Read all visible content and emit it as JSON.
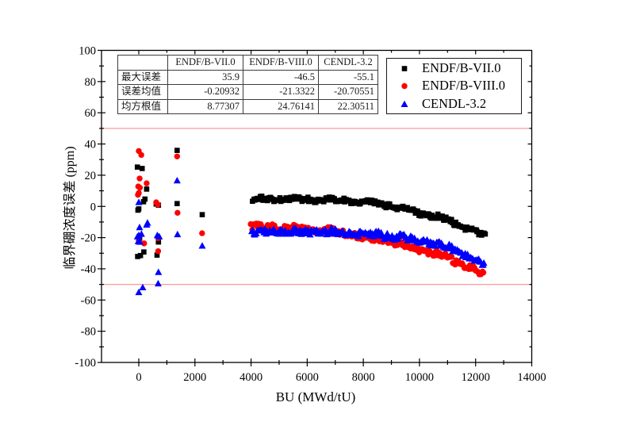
{
  "figure": {
    "background": "#ffffff",
    "axis_color": "#000000"
  },
  "chart_data": {
    "type": "scatter",
    "title": "",
    "xlabel": "BU (MWd/tU)",
    "ylabel": "临界硼浓度误差 (ppm)",
    "xlim": [
      -1330,
      14000
    ],
    "ylim": [
      -100,
      100
    ],
    "xticks": [
      0,
      2000,
      4000,
      6000,
      8000,
      10000,
      12000,
      14000
    ],
    "x_minor_step": 1000,
    "yticks": [
      -100,
      -80,
      -60,
      -40,
      -20,
      0,
      20,
      40,
      60,
      80,
      100
    ],
    "y_minor_step": 10,
    "grid": false,
    "reference_lines": {
      "values": [
        50,
        -50
      ],
      "color": "#ff9898",
      "width": 1.2
    },
    "legend_position": "top-right",
    "jitter_seed": 1337,
    "series": [
      {
        "name": "ENDF/B-VII.0",
        "marker": "square",
        "color": "#000000",
        "cluster_points": [
          [
            -50,
            25.2
          ],
          [
            120,
            24.3
          ],
          [
            280,
            11.1
          ],
          [
            220,
            4.7
          ],
          [
            170,
            3.0
          ],
          [
            0,
            -1.6
          ],
          [
            -30,
            -2.4
          ],
          [
            30,
            -20.5
          ],
          [
            180,
            -29.2
          ],
          [
            -40,
            -32.1
          ],
          [
            60,
            -31.5
          ],
          [
            620,
            1.5
          ],
          [
            700,
            0.8
          ],
          [
            700,
            -22.8
          ],
          [
            650,
            -31.2
          ],
          [
            1366,
            35.9
          ],
          [
            1366,
            1.8
          ],
          [
            2260,
            -5.3
          ]
        ],
        "band": {
          "x_start": 4060,
          "x_end": 12360,
          "x_step": 40,
          "x_jitter": 14,
          "y_jitter": 1.4,
          "anchors": [
            [
              4060,
              4.2
            ],
            [
              4500,
              4.7
            ],
            [
              5000,
              5.0
            ],
            [
              5600,
              4.7
            ],
            [
              6200,
              4.5
            ],
            [
              6800,
              4.4
            ],
            [
              7400,
              4.0
            ],
            [
              7800,
              3.4
            ],
            [
              8300,
              2.4
            ],
            [
              8800,
              1.0
            ],
            [
              9300,
              -1.0
            ],
            [
              9800,
              -3.4
            ],
            [
              10300,
              -5.4
            ],
            [
              10900,
              -8.0
            ],
            [
              11400,
              -11.5
            ],
            [
              11900,
              -15.0
            ],
            [
              12200,
              -18.2
            ],
            [
              12360,
              -20.0
            ]
          ]
        },
        "stats": {
          "max_error": "35.9",
          "mean_error": "-0.20932",
          "rms": "8.77307"
        }
      },
      {
        "name": "ENDF/B-VIII.0",
        "marker": "circle",
        "color": "#ff0000",
        "cluster_points": [
          [
            0,
            35.5
          ],
          [
            90,
            33.0
          ],
          [
            30,
            17.9
          ],
          [
            280,
            14.8
          ],
          [
            -20,
            12.8
          ],
          [
            40,
            12.0
          ],
          [
            0,
            8.6
          ],
          [
            -30,
            7.4
          ],
          [
            0,
            -22.0
          ],
          [
            190,
            -23.7
          ],
          [
            620,
            2.6
          ],
          [
            680,
            1.2
          ],
          [
            690,
            -20.3
          ],
          [
            690,
            -28.7
          ],
          [
            1366,
            32.0
          ],
          [
            1380,
            -4.1
          ],
          [
            2255,
            -17.2
          ]
        ],
        "band": {
          "x_start": 4000,
          "x_end": 12310,
          "x_step": 40,
          "x_jitter": 14,
          "y_jitter": 1.8,
          "anchors": [
            [
              4000,
              -13.2
            ],
            [
              4400,
              -12.6
            ],
            [
              5000,
              -13.6
            ],
            [
              5600,
              -14.2
            ],
            [
              6200,
              -14.8
            ],
            [
              6800,
              -15.6
            ],
            [
              7400,
              -17.4
            ],
            [
              7900,
              -19.2
            ],
            [
              8400,
              -20.8
            ],
            [
              9000,
              -23.0
            ],
            [
              9500,
              -25.0
            ],
            [
              10000,
              -27.4
            ],
            [
              10500,
              -30.0
            ],
            [
              11000,
              -33.0
            ],
            [
              11400,
              -36.0
            ],
            [
              11900,
              -40.0
            ],
            [
              12150,
              -42.8
            ],
            [
              12310,
              -45.0
            ]
          ]
        },
        "stats": {
          "max_error": "-46.5",
          "mean_error": "-21.3322",
          "rms": "24.76141"
        }
      },
      {
        "name": "CENDL-3.2",
        "marker": "triangle",
        "color": "#0000ff",
        "cluster_points": [
          [
            0,
            2.6
          ],
          [
            28,
            -13.5
          ],
          [
            282,
            -11.8
          ],
          [
            310,
            -10.6
          ],
          [
            -48,
            -19.4
          ],
          [
            0,
            -18.6
          ],
          [
            94,
            -17.7
          ],
          [
            -20,
            -22.5
          ],
          [
            40,
            -22.8
          ],
          [
            660,
            -18.6
          ],
          [
            730,
            -19.4
          ],
          [
            700,
            -42.2
          ],
          [
            690,
            -49.5
          ],
          [
            0,
            -55.1
          ],
          [
            140,
            -52.0
          ],
          [
            1366,
            16.5
          ],
          [
            1380,
            -18.0
          ],
          [
            2260,
            -25.3
          ]
        ],
        "band": {
          "x_start": 4020,
          "x_end": 12310,
          "x_step": 40,
          "x_jitter": 14,
          "y_jitter": 1.8,
          "anchors": [
            [
              4020,
              -16.6
            ],
            [
              4600,
              -16.1
            ],
            [
              5200,
              -16.1
            ],
            [
              5800,
              -16.1
            ],
            [
              6400,
              -16.2
            ],
            [
              7000,
              -16.5
            ],
            [
              7600,
              -17.1
            ],
            [
              8200,
              -17.7
            ],
            [
              8800,
              -18.6
            ],
            [
              9400,
              -20.0
            ],
            [
              10000,
              -22.0
            ],
            [
              10500,
              -23.8
            ],
            [
              11000,
              -26.2
            ],
            [
              11400,
              -29.5
            ],
            [
              11900,
              -33.2
            ],
            [
              12150,
              -35.6
            ],
            [
              12310,
              -37.6
            ]
          ]
        },
        "stats": {
          "max_error": "-55.1",
          "mean_error": "-20.70551",
          "rms": "22.30511"
        }
      }
    ],
    "stats_table": {
      "corner_label": "",
      "columns": [
        "ENDF/B-VII.0",
        "ENDF/B-VIII.0",
        "CENDL-3.2"
      ],
      "rows": [
        {
          "label": "最大误差",
          "values": [
            "35.9",
            "-46.5",
            "-55.1"
          ]
        },
        {
          "label": "误差均值",
          "values": [
            "-0.20932",
            "-21.3322",
            "-20.70551"
          ]
        },
        {
          "label": "均方根值",
          "values": [
            "8.77307",
            "24.76141",
            "22.30511"
          ]
        }
      ]
    }
  }
}
